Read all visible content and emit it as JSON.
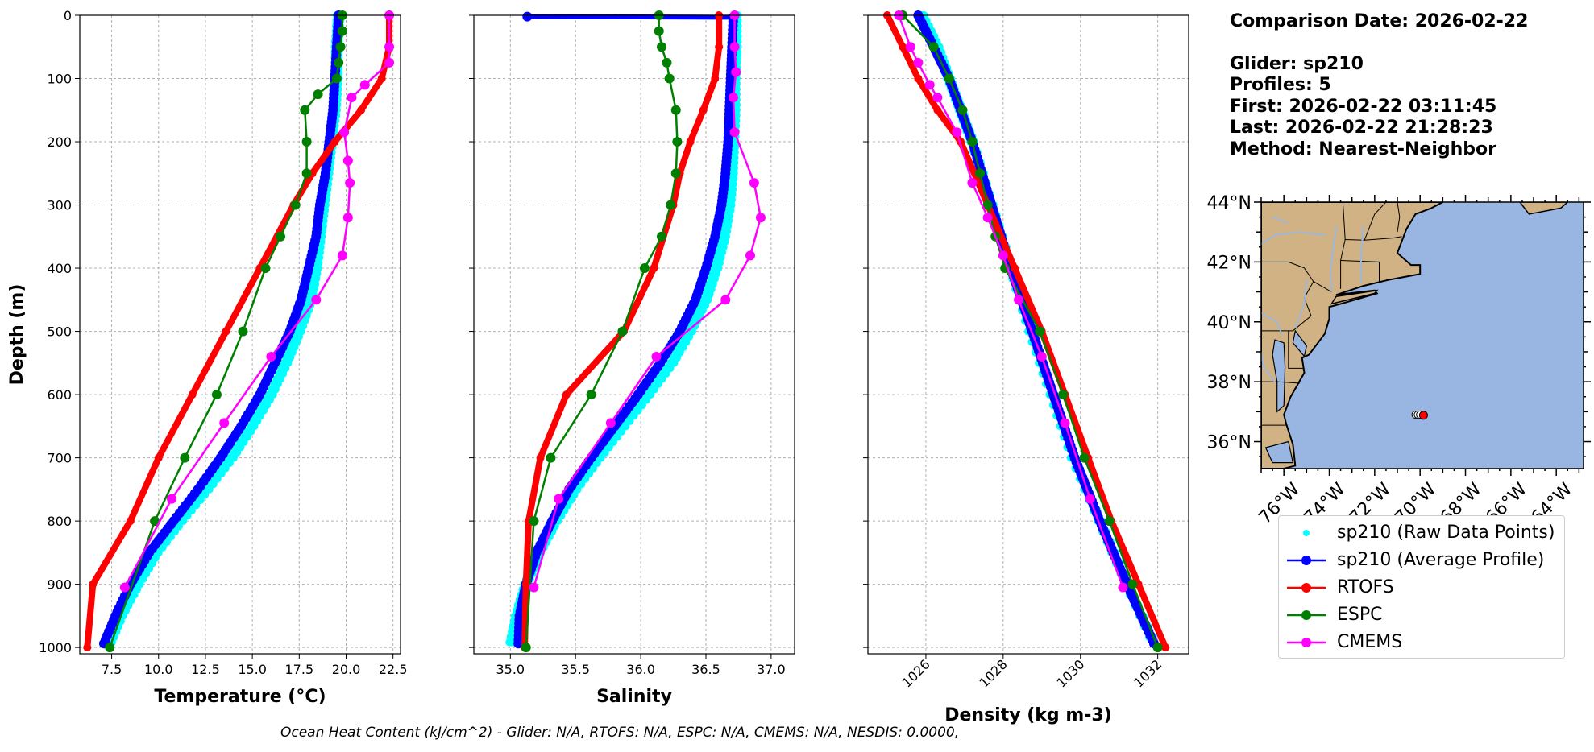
{
  "info": {
    "comparison_date": "Comparison Date: 2026-02-22",
    "glider": "Glider: sp210",
    "profiles": "Profiles: 5",
    "first": "First: 2026-02-22 03:11:45",
    "last": "Last: 2026-02-22 21:28:23",
    "method": "Method: Nearest-Neighbor"
  },
  "footer": "Ocean Heat Content (kJ/cm^2) - Glider: N/A,  RTOFS: N/A,  ESPC: N/A,  CMEMS: N/A,  NESDIS: 0.0000,",
  "legend": [
    {
      "label": "sp210 (Raw Data Points)",
      "color": "#00ffff",
      "style": "dot"
    },
    {
      "label": "sp210 (Average Profile)",
      "color": "#0000ff",
      "style": "line-marker"
    },
    {
      "label": "RTOFS",
      "color": "#ff0000",
      "style": "line-marker"
    },
    {
      "label": "ESPC",
      "color": "#008000",
      "style": "line-marker"
    },
    {
      "label": "CMEMS",
      "color": "#ff00ff",
      "style": "line-marker"
    }
  ],
  "chart_data": [
    {
      "type": "line",
      "xlabel": "Temperature ($^oC$)",
      "xlabel_display": "Temperature (°C)",
      "ylabel": "Depth (m)",
      "xlim": [
        5.8,
        22.9
      ],
      "ylim": [
        1010,
        0
      ],
      "xticks": [
        7.5,
        10.0,
        12.5,
        15.0,
        17.5,
        20.0,
        22.5
      ],
      "xtick_labels": [
        "7.5",
        "10.0",
        "12.5",
        "15.0",
        "17.5",
        "20.0",
        "22.5"
      ],
      "yticks": [
        0,
        100,
        200,
        300,
        400,
        500,
        600,
        700,
        800,
        900,
        1000
      ],
      "series": [
        {
          "name": "sp210 (Raw Data Points)",
          "color": "#00ffff",
          "depth": [
            0,
            50,
            100,
            150,
            200,
            250,
            300,
            350,
            400,
            450,
            500,
            550,
            600,
            650,
            700,
            750,
            800,
            850,
            900,
            950,
            1000
          ],
          "values": [
            19.6,
            19.5,
            19.5,
            19.4,
            19.2,
            19.0,
            18.8,
            18.6,
            18.4,
            18.1,
            17.5,
            16.8,
            16.0,
            15.0,
            13.9,
            12.6,
            11.2,
            9.9,
            8.9,
            8.0,
            7.3
          ]
        },
        {
          "name": "sp210 (Average Profile)",
          "color": "#0000ff",
          "depth": [
            0,
            50,
            100,
            150,
            200,
            250,
            300,
            350,
            400,
            450,
            500,
            550,
            600,
            650,
            700,
            750,
            800,
            850,
            900,
            950,
            1000
          ],
          "values": [
            19.6,
            19.5,
            19.4,
            19.3,
            19.1,
            18.9,
            18.6,
            18.4,
            18.0,
            17.6,
            17.0,
            16.2,
            15.4,
            14.4,
            13.3,
            12.1,
            10.8,
            9.5,
            8.5,
            7.7,
            7.0
          ]
        },
        {
          "name": "RTOFS",
          "color": "#ff0000",
          "depth": [
            0,
            50,
            100,
            150,
            200,
            250,
            300,
            400,
            500,
            600,
            700,
            800,
            900,
            1000
          ],
          "values": [
            22.3,
            22.3,
            21.9,
            20.8,
            19.4,
            18.2,
            17.2,
            15.4,
            13.6,
            11.8,
            10.0,
            8.5,
            6.5,
            6.2
          ]
        },
        {
          "name": "ESPC",
          "color": "#008000",
          "depth": [
            0,
            25,
            50,
            75,
            100,
            125,
            150,
            200,
            250,
            300,
            350,
            400,
            500,
            600,
            700,
            800,
            1000
          ],
          "values": [
            19.8,
            19.8,
            19.7,
            19.6,
            19.5,
            18.5,
            17.8,
            17.9,
            17.9,
            17.3,
            16.5,
            15.7,
            14.5,
            13.1,
            11.4,
            9.8,
            7.4
          ]
        },
        {
          "name": "CMEMS",
          "color": "#ff00ff",
          "depth": [
            0,
            50,
            75,
            110,
            130,
            185,
            230,
            265,
            320,
            380,
            450,
            540,
            645,
            765,
            905
          ],
          "values": [
            22.3,
            22.3,
            22.3,
            21.0,
            20.3,
            19.9,
            20.1,
            20.2,
            20.1,
            19.8,
            18.4,
            16.0,
            13.5,
            10.7,
            8.2
          ]
        }
      ]
    },
    {
      "type": "line",
      "xlabel": "Salinity",
      "xlim": [
        34.72,
        37.18
      ],
      "ylim": [
        1010,
        0
      ],
      "xticks": [
        35.0,
        35.5,
        36.0,
        36.5,
        37.0
      ],
      "xtick_labels": [
        "35.0",
        "35.5",
        "36.0",
        "36.5",
        "37.0"
      ],
      "yticks": [
        0,
        100,
        200,
        300,
        400,
        500,
        600,
        700,
        800,
        900,
        1000
      ],
      "series": [
        {
          "name": "sp210 (Raw Data Points)",
          "color": "#00ffff",
          "depth": [
            0,
            50,
            100,
            150,
            200,
            250,
            300,
            350,
            400,
            450,
            500,
            550,
            600,
            650,
            700,
            750,
            800,
            850,
            900,
            950,
            1000
          ],
          "values": [
            36.73,
            36.73,
            36.72,
            36.72,
            36.71,
            36.7,
            36.68,
            36.64,
            36.58,
            36.5,
            36.38,
            36.24,
            36.06,
            35.87,
            35.68,
            35.5,
            35.35,
            35.22,
            35.12,
            35.05,
            35.0
          ]
        },
        {
          "name": "sp210 (Average Profile)",
          "color": "#0000ff",
          "depth": [
            2,
            3,
            50,
            100,
            150,
            200,
            250,
            300,
            350,
            400,
            450,
            500,
            550,
            600,
            650,
            700,
            750,
            800,
            850,
            900,
            950,
            1000
          ],
          "values": [
            35.13,
            36.71,
            36.7,
            36.69,
            36.68,
            36.67,
            36.65,
            36.62,
            36.57,
            36.5,
            36.42,
            36.3,
            36.15,
            35.98,
            35.8,
            35.62,
            35.45,
            35.32,
            35.2,
            35.12,
            35.07,
            35.06
          ]
        },
        {
          "name": "RTOFS",
          "color": "#ff0000",
          "depth": [
            0,
            50,
            100,
            150,
            200,
            250,
            300,
            400,
            500,
            600,
            700,
            800,
            900,
            1000
          ],
          "values": [
            36.6,
            36.6,
            36.57,
            36.48,
            36.38,
            36.3,
            36.25,
            36.1,
            35.87,
            35.43,
            35.23,
            35.14,
            35.12,
            35.11
          ]
        },
        {
          "name": "ESPC",
          "color": "#008000",
          "depth": [
            0,
            25,
            50,
            75,
            100,
            150,
            200,
            250,
            300,
            350,
            400,
            500,
            600,
            700,
            800,
            1000
          ],
          "values": [
            36.14,
            36.14,
            36.16,
            36.2,
            36.22,
            36.27,
            36.28,
            36.27,
            36.23,
            36.16,
            36.03,
            35.86,
            35.62,
            35.31,
            35.18,
            35.12
          ]
        },
        {
          "name": "CMEMS",
          "color": "#ff00ff",
          "depth": [
            0,
            50,
            90,
            130,
            185,
            265,
            320,
            380,
            450,
            540,
            645,
            765,
            905
          ],
          "values": [
            36.72,
            36.72,
            36.73,
            36.71,
            36.72,
            36.87,
            36.92,
            36.84,
            36.65,
            36.12,
            35.77,
            35.37,
            35.18
          ]
        }
      ]
    },
    {
      "type": "line",
      "xlabel": "Density (kg m-3)",
      "xlim": [
        1024.5,
        1032.8
      ],
      "ylim": [
        1010,
        0
      ],
      "xticks": [
        1026,
        1028,
        1030,
        1032
      ],
      "xtick_labels": [
        "1026",
        "1028",
        "1030",
        "1032"
      ],
      "yticks": [
        0,
        100,
        200,
        300,
        400,
        500,
        600,
        700,
        800,
        900,
        1000
      ],
      "series": [
        {
          "name": "sp210 (Raw Data Points)",
          "color": "#00ffff",
          "depth": [
            0,
            50,
            100,
            150,
            200,
            300,
            400,
            500,
            600,
            700,
            800,
            900,
            1000
          ],
          "values": [
            1025.9,
            1026.3,
            1026.6,
            1026.9,
            1027.2,
            1027.7,
            1028.2,
            1028.7,
            1029.25,
            1029.8,
            1030.5,
            1031.2,
            1031.95
          ]
        },
        {
          "name": "sp210 (Average Profile)",
          "color": "#0000ff",
          "depth": [
            0,
            50,
            100,
            150,
            200,
            300,
            400,
            500,
            600,
            700,
            800,
            900,
            1000
          ],
          "values": [
            1025.8,
            1026.2,
            1026.6,
            1026.9,
            1027.2,
            1027.7,
            1028.2,
            1028.75,
            1029.3,
            1029.85,
            1030.5,
            1031.2,
            1031.95
          ]
        },
        {
          "name": "RTOFS",
          "color": "#ff0000",
          "depth": [
            0,
            50,
            100,
            150,
            200,
            300,
            400,
            500,
            600,
            700,
            800,
            900,
            1000
          ],
          "values": [
            1025.0,
            1025.4,
            1025.8,
            1026.3,
            1026.9,
            1027.6,
            1028.3,
            1029.0,
            1029.6,
            1030.2,
            1030.8,
            1031.5,
            1032.2
          ]
        },
        {
          "name": "ESPC",
          "color": "#008000",
          "depth": [
            0,
            50,
            100,
            150,
            200,
            250,
            300,
            350,
            400,
            500,
            600,
            700,
            800,
            900,
            1000
          ],
          "values": [
            1025.4,
            1026.2,
            1026.6,
            1026.95,
            1027.2,
            1027.4,
            1027.6,
            1027.8,
            1028.05,
            1028.95,
            1029.55,
            1030.1,
            1030.75,
            1031.35,
            1032.0
          ]
        },
        {
          "name": "CMEMS",
          "color": "#ff00ff",
          "depth": [
            0,
            50,
            75,
            110,
            130,
            185,
            265,
            320,
            380,
            450,
            540,
            645,
            765,
            905
          ],
          "values": [
            1025.3,
            1025.6,
            1025.8,
            1026.1,
            1026.3,
            1026.8,
            1027.2,
            1027.6,
            1028.0,
            1028.4,
            1029.0,
            1029.6,
            1030.25,
            1031.1
          ]
        }
      ]
    }
  ],
  "map": {
    "lat_labels": [
      "44°N",
      "42°N",
      "40°N",
      "38°N",
      "36°N"
    ],
    "lon_labels": [
      "76°W",
      "74°W",
      "72°W",
      "70°W",
      "68°W",
      "66°W",
      "64°W"
    ],
    "ocean_color": "#99b6e3",
    "land_color": "#d0b285",
    "glider_positions": [
      {
        "lat": 36.9,
        "lon": -70.2
      },
      {
        "lat": 36.9,
        "lon": -70.1
      },
      {
        "lat": 36.9,
        "lon": -70.0
      },
      {
        "lat": 36.88,
        "lon": -69.85
      }
    ]
  }
}
